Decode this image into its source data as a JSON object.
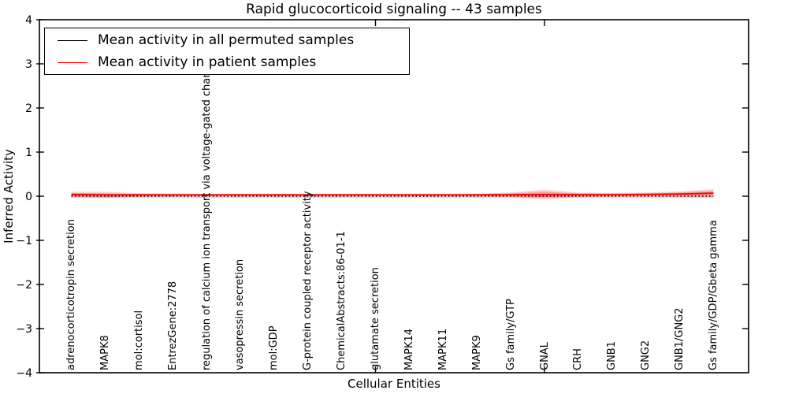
{
  "figure": {
    "title": "Rapid glucocorticoid signaling -- 43 samples",
    "xlabel": "Cellular Entities",
    "ylabel": "Inferred Activity"
  },
  "legend": {
    "entries": [
      {
        "label": "Mean activity in all permuted samples",
        "color": "#000000"
      },
      {
        "label": "Mean activity in patient samples",
        "color": "#ff0000"
      }
    ]
  },
  "chart_data": {
    "type": "line",
    "title": "Rapid glucocorticoid signaling -- 43 samples",
    "xlabel": "Cellular Entities",
    "ylabel": "Inferred Activity",
    "ylim": [
      -4,
      4
    ],
    "ytick_labels": [
      "4",
      "3",
      "2",
      "1",
      "0",
      "−1",
      "−2",
      "−3",
      "−4"
    ],
    "ytick_values": [
      4,
      3,
      2,
      1,
      0,
      -1,
      -2,
      -3,
      -4
    ],
    "grid": false,
    "legend_position": "upper left",
    "categories": [
      "adrenocorticotropin secretion",
      "MAPK8",
      "mol:cortisol",
      "EntrezGene:2778",
      "regulation of calcium ion transport via voltage-gated channel",
      "vasopressin secretion",
      "mol:GDP",
      "G-protein coupled receptor activity",
      "ChemicalAbstracts:86-01-1",
      "glutamate secretion",
      "MAPK14",
      "MAPK11",
      "MAPK9",
      "Gs family/GTP",
      "GNAL",
      "CRH",
      "GNB1",
      "GNG2",
      "GNB1/GNG2",
      "Gs family/GDP/Gbeta gamma"
    ],
    "series": [
      {
        "name": "Mean activity in all permuted samples",
        "color": "#000000",
        "line_style": "dotted",
        "band_color": "#888888",
        "values": [
          0,
          0,
          0,
          0,
          0,
          0,
          0,
          0,
          0,
          0,
          0,
          0,
          0,
          0,
          0,
          0,
          0,
          0,
          0,
          0
        ],
        "std": [
          0.045,
          0.045,
          0.045,
          0.045,
          0.045,
          0.045,
          0.045,
          0.045,
          0.045,
          0.045,
          0.045,
          0.045,
          0.045,
          0.045,
          0.045,
          0.045,
          0.045,
          0.045,
          0.045,
          0.045
        ]
      },
      {
        "name": "Mean activity in patient samples",
        "color": "#ff0000",
        "line_style": "solid",
        "band_color": "#ff0000",
        "values": [
          0.04,
          0.03,
          0.03,
          0.03,
          0.03,
          0.03,
          0.03,
          0.03,
          0.03,
          0.03,
          0.03,
          0.03,
          0.03,
          0.035,
          0.04,
          0.035,
          0.035,
          0.04,
          0.05,
          0.07
        ],
        "std": [
          0.06,
          0.07,
          0.04,
          0.03,
          0.025,
          0.025,
          0.025,
          0.025,
          0.025,
          0.025,
          0.025,
          0.025,
          0.03,
          0.05,
          0.11,
          0.05,
          0.04,
          0.045,
          0.06,
          0.09
        ]
      }
    ],
    "extra_top_tick_category_indices": [
      9,
      14
    ]
  }
}
